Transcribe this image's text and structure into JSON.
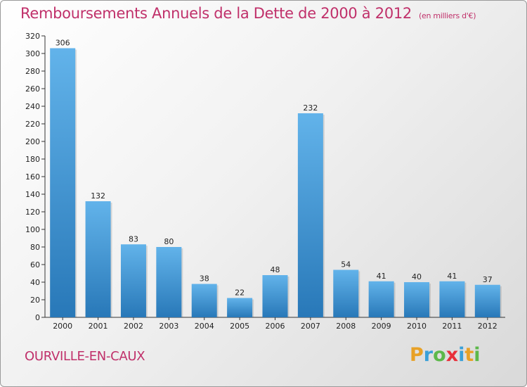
{
  "chart_data": {
    "type": "bar",
    "title": "Remboursements Annuels de la Dette de 2000 à 2012",
    "unit": "(en milliers d'€)",
    "categories": [
      "2000",
      "2001",
      "2002",
      "2003",
      "2004",
      "2005",
      "2006",
      "2007",
      "2008",
      "2009",
      "2010",
      "2011",
      "2012"
    ],
    "values": [
      306,
      132,
      83,
      80,
      38,
      22,
      48,
      232,
      54,
      41,
      40,
      41,
      37
    ],
    "ylim": [
      0,
      320
    ],
    "yticks": [
      0,
      20,
      40,
      60,
      80,
      100,
      120,
      140,
      160,
      180,
      200,
      220,
      240,
      260,
      280,
      300,
      320
    ],
    "grid": false,
    "bar_color_top": "#62b3ea",
    "bar_color_bottom": "#2878b8",
    "title_color": "#c0306a"
  },
  "place": "OURVILLE-EN-CAUX",
  "logo": {
    "text": "Proxiti",
    "letters": [
      {
        "ch": "P",
        "color": "#e8a126"
      },
      {
        "ch": "r",
        "color": "#3aa0d8"
      },
      {
        "ch": "o",
        "color": "#5cb84a"
      },
      {
        "ch": "x",
        "color": "#e8303a"
      },
      {
        "ch": "i",
        "color": "#3aa0d8"
      },
      {
        "ch": "t",
        "color": "#e8a126"
      },
      {
        "ch": "i",
        "color": "#5cb84a"
      }
    ]
  }
}
